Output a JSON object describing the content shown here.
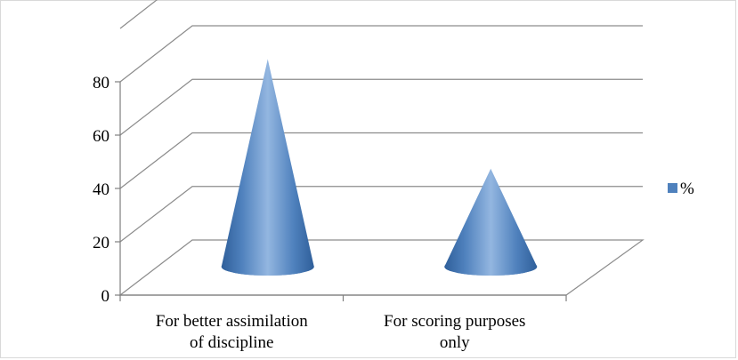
{
  "chart_data": {
    "type": "bar",
    "bar_shape": "3d-cone",
    "categories": [
      "For better assimilation of discipline",
      "For scoring purposes only"
    ],
    "category_lines": [
      [
        "For better assimilation",
        "of discipline"
      ],
      [
        "For scoring purposes",
        "only"
      ]
    ],
    "series": [
      {
        "name": "%",
        "values": [
          78,
          37
        ],
        "color": "#4f81bd"
      }
    ],
    "ylim": [
      0,
      80
    ],
    "yticks": [
      0,
      20,
      40,
      60,
      80
    ],
    "grid": true,
    "legend": "right"
  }
}
